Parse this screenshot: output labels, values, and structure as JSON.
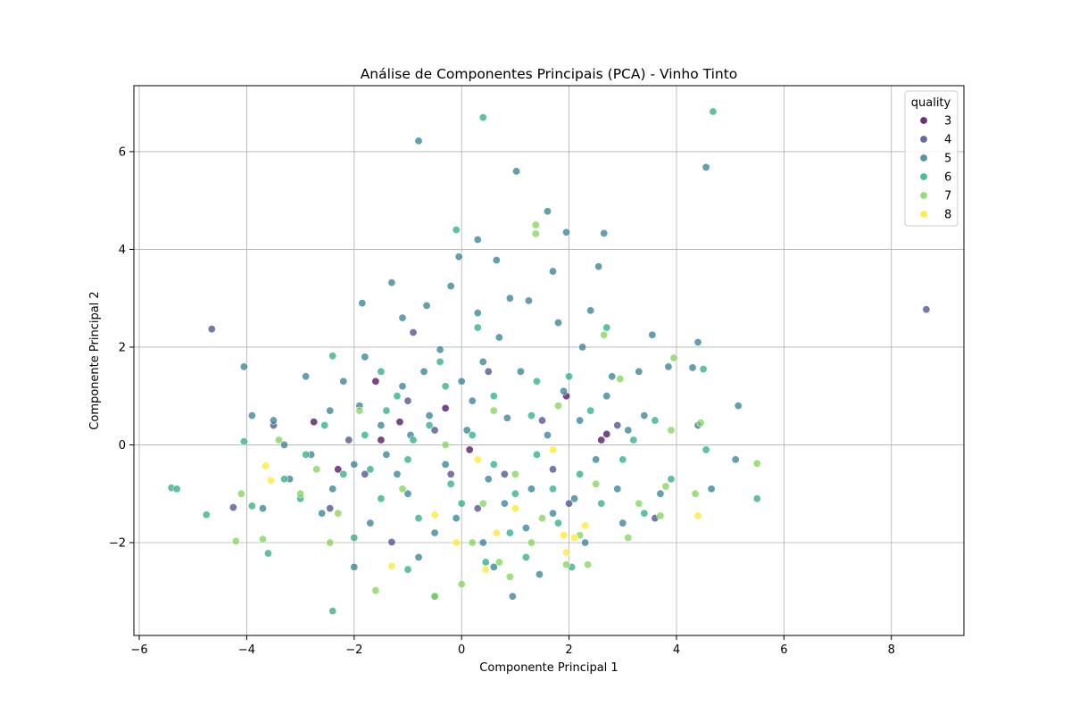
{
  "chart_data": {
    "type": "scatter",
    "title": "Análise de Componentes Principais (PCA) - Vinho Tinto",
    "xlabel": "Componente Principal 1",
    "ylabel": "Componente Principal 2",
    "xlim": [
      -6.1,
      9.35
    ],
    "ylim": [
      -3.9,
      7.35
    ],
    "xticks": [
      -6,
      -4,
      -2,
      0,
      2,
      4,
      6,
      8
    ],
    "yticks": [
      -2,
      0,
      2,
      4,
      6
    ],
    "grid": true,
    "legend": {
      "title": "quality",
      "placement": "upper-right",
      "entries": [
        "3",
        "4",
        "5",
        "6",
        "7",
        "8"
      ]
    },
    "colors": {
      "3": "#440154",
      "4": "#414487",
      "5": "#2a788e",
      "6": "#22a884",
      "7": "#7ad151",
      "8": "#fde725"
    },
    "series": [
      {
        "name": "3",
        "points": [
          [
            -2.75,
            0.47
          ],
          [
            -1.6,
            1.3
          ],
          [
            -1.15,
            0.47
          ],
          [
            -1.5,
            0.1
          ],
          [
            0.15,
            -0.1
          ],
          [
            2.7,
            0.22
          ],
          [
            2.6,
            0.1
          ],
          [
            -0.3,
            0.75
          ],
          [
            1.95,
            1.0
          ],
          [
            -2.3,
            -0.5
          ]
        ]
      },
      {
        "name": "4",
        "points": [
          [
            8.65,
            2.77
          ],
          [
            -4.65,
            2.37
          ],
          [
            -3.5,
            0.4
          ],
          [
            -2.45,
            -1.3
          ],
          [
            -4.25,
            -1.28
          ],
          [
            -1.3,
            -1.99
          ],
          [
            1.7,
            -0.5
          ],
          [
            2.9,
            0.4
          ],
          [
            0.5,
            1.5
          ],
          [
            -0.5,
            0.3
          ],
          [
            0.8,
            -0.6
          ],
          [
            -1.8,
            -0.6
          ],
          [
            1.5,
            0.5
          ],
          [
            -0.9,
            2.3
          ],
          [
            3.6,
            -1.5
          ],
          [
            -2.1,
            0.1
          ],
          [
            0.3,
            -1.3
          ],
          [
            2.0,
            -1.2
          ],
          [
            -1.0,
            0.9
          ],
          [
            -0.2,
            -0.6
          ]
        ]
      },
      {
        "name": "5",
        "points": [
          [
            -0.8,
            6.22
          ],
          [
            4.55,
            5.68
          ],
          [
            1.02,
            5.6
          ],
          [
            1.6,
            4.78
          ],
          [
            1.95,
            4.35
          ],
          [
            2.65,
            4.33
          ],
          [
            -0.05,
            3.85
          ],
          [
            0.3,
            4.2
          ],
          [
            0.65,
            3.78
          ],
          [
            1.7,
            3.55
          ],
          [
            2.55,
            3.65
          ],
          [
            -1.3,
            3.32
          ],
          [
            -0.2,
            3.25
          ],
          [
            0.9,
            3.0
          ],
          [
            1.25,
            2.95
          ],
          [
            2.4,
            2.75
          ],
          [
            -0.65,
            2.85
          ],
          [
            3.55,
            2.25
          ],
          [
            4.4,
            2.1
          ],
          [
            -1.85,
            2.9
          ],
          [
            -1.1,
            2.6
          ],
          [
            0.3,
            2.7
          ],
          [
            1.8,
            2.5
          ],
          [
            2.25,
            2.0
          ],
          [
            3.85,
            1.6
          ],
          [
            4.3,
            1.58
          ],
          [
            -4.05,
            1.6
          ],
          [
            -1.8,
            1.8
          ],
          [
            -0.4,
            1.95
          ],
          [
            0.7,
            2.2
          ],
          [
            1.9,
            1.1
          ],
          [
            2.8,
            1.4
          ],
          [
            3.3,
            1.5
          ],
          [
            -3.9,
            0.6
          ],
          [
            -2.45,
            0.7
          ],
          [
            -1.5,
            0.4
          ],
          [
            -0.95,
            0.2
          ],
          [
            0.1,
            0.3
          ],
          [
            0.85,
            0.55
          ],
          [
            2.2,
            0.5
          ],
          [
            3.1,
            0.3
          ],
          [
            4.4,
            0.4
          ],
          [
            5.15,
            0.8
          ],
          [
            -3.3,
            0.0
          ],
          [
            -2.8,
            -0.2
          ],
          [
            -2.0,
            -0.4
          ],
          [
            -1.2,
            -0.6
          ],
          [
            -0.3,
            -0.4
          ],
          [
            0.5,
            -0.7
          ],
          [
            1.3,
            -0.9
          ],
          [
            2.1,
            -1.1
          ],
          [
            2.9,
            -0.9
          ],
          [
            3.7,
            -1.0
          ],
          [
            4.65,
            -0.9
          ],
          [
            5.1,
            -0.3
          ],
          [
            -3.7,
            -1.3
          ],
          [
            -2.6,
            -1.4
          ],
          [
            -1.7,
            -1.6
          ],
          [
            -0.5,
            -1.8
          ],
          [
            0.4,
            -2.0
          ],
          [
            1.2,
            -1.7
          ],
          [
            2.3,
            -2.0
          ],
          [
            3.0,
            -1.6
          ],
          [
            -2.0,
            -2.5
          ],
          [
            -0.8,
            -2.3
          ],
          [
            0.6,
            -2.5
          ],
          [
            1.45,
            -2.65
          ],
          [
            0.95,
            -3.1
          ],
          [
            -1.1,
            1.2
          ],
          [
            -0.7,
            1.5
          ],
          [
            0.0,
            1.3
          ],
          [
            0.4,
            1.7
          ],
          [
            1.1,
            1.5
          ],
          [
            -2.2,
            1.3
          ],
          [
            -2.9,
            1.4
          ],
          [
            -3.5,
            0.5
          ],
          [
            -3.2,
            -0.7
          ],
          [
            -1.4,
            -0.2
          ],
          [
            -0.6,
            0.6
          ],
          [
            0.2,
            0.9
          ],
          [
            1.6,
            0.2
          ],
          [
            2.5,
            -0.3
          ],
          [
            3.4,
            0.6
          ],
          [
            -1.9,
            0.8
          ],
          [
            -1.0,
            -1.0
          ],
          [
            0.8,
            -1.2
          ],
          [
            1.7,
            -1.4
          ],
          [
            -2.4,
            -0.9
          ],
          [
            -0.1,
            -1.5
          ],
          [
            2.7,
            1.0
          ]
        ]
      },
      {
        "name": "6",
        "points": [
          [
            4.68,
            6.82
          ],
          [
            0.4,
            6.7
          ],
          [
            -0.1,
            4.4
          ],
          [
            -2.4,
            1.82
          ],
          [
            -1.5,
            1.5
          ],
          [
            -0.3,
            1.2
          ],
          [
            0.6,
            1.0
          ],
          [
            1.4,
            1.3
          ],
          [
            2.7,
            2.4
          ],
          [
            4.5,
            1.55
          ],
          [
            -5.4,
            -0.88
          ],
          [
            -5.3,
            -0.9
          ],
          [
            -4.75,
            -1.43
          ],
          [
            -4.05,
            0.07
          ],
          [
            -3.9,
            -1.25
          ],
          [
            -3.6,
            -2.22
          ],
          [
            -3.3,
            -0.7
          ],
          [
            -2.9,
            -0.2
          ],
          [
            -2.55,
            0.4
          ],
          [
            -2.2,
            -0.6
          ],
          [
            -1.8,
            0.2
          ],
          [
            -1.4,
            0.7
          ],
          [
            -1.0,
            -0.3
          ],
          [
            -0.6,
            0.4
          ],
          [
            -0.2,
            -0.8
          ],
          [
            0.2,
            0.2
          ],
          [
            0.6,
            -0.4
          ],
          [
            1.0,
            -1.0
          ],
          [
            1.4,
            -0.2
          ],
          [
            1.8,
            -1.6
          ],
          [
            2.2,
            -0.6
          ],
          [
            2.6,
            -1.2
          ],
          [
            3.0,
            -0.3
          ],
          [
            3.4,
            -1.4
          ],
          [
            3.9,
            -0.7
          ],
          [
            4.55,
            -0.1
          ],
          [
            5.5,
            -1.1
          ],
          [
            -2.4,
            -3.4
          ],
          [
            -1.0,
            -2.55
          ],
          [
            -0.5,
            -3.1
          ],
          [
            0.45,
            -2.4
          ],
          [
            1.2,
            -2.3
          ],
          [
            2.05,
            -2.5
          ],
          [
            -1.5,
            -1.1
          ],
          [
            -0.8,
            -1.5
          ],
          [
            0.0,
            -1.2
          ],
          [
            0.9,
            -1.8
          ],
          [
            1.7,
            -0.9
          ],
          [
            2.4,
            0.7
          ],
          [
            3.2,
            0.1
          ],
          [
            -3.0,
            -1.1
          ],
          [
            -2.0,
            -1.9
          ],
          [
            -1.2,
            1.0
          ],
          [
            -0.4,
            1.7
          ],
          [
            0.3,
            2.4
          ],
          [
            1.3,
            0.6
          ],
          [
            2.0,
            1.4
          ],
          [
            3.6,
            0.5
          ],
          [
            -1.7,
            -0.5
          ],
          [
            -0.9,
            0.1
          ]
        ]
      },
      {
        "name": "7",
        "points": [
          [
            1.38,
            4.5
          ],
          [
            1.38,
            4.32
          ],
          [
            2.65,
            2.25
          ],
          [
            3.95,
            1.78
          ],
          [
            4.45,
            0.45
          ],
          [
            4.35,
            -1.0
          ],
          [
            5.5,
            -0.38
          ],
          [
            -4.1,
            -1.0
          ],
          [
            -4.2,
            -1.97
          ],
          [
            -3.7,
            -1.93
          ],
          [
            -3.0,
            -1.0
          ],
          [
            -2.45,
            -2.0
          ],
          [
            -1.6,
            -2.98
          ],
          [
            -0.5,
            -3.1
          ],
          [
            0.0,
            -2.85
          ],
          [
            0.7,
            -2.4
          ],
          [
            1.3,
            -2.0
          ],
          [
            1.95,
            -2.45
          ],
          [
            2.2,
            -1.85
          ],
          [
            2.35,
            -2.45
          ],
          [
            3.1,
            -1.9
          ],
          [
            3.7,
            -1.45
          ],
          [
            3.8,
            -0.85
          ],
          [
            3.9,
            0.3
          ],
          [
            2.95,
            1.35
          ],
          [
            -1.9,
            0.7
          ],
          [
            -0.3,
            0.0
          ],
          [
            0.4,
            -1.2
          ],
          [
            1.0,
            -0.6
          ],
          [
            1.8,
            0.8
          ],
          [
            -2.3,
            -1.4
          ],
          [
            -1.1,
            -0.9
          ],
          [
            0.2,
            -2.0
          ],
          [
            0.9,
            -2.7
          ],
          [
            2.5,
            -0.8
          ],
          [
            3.3,
            -1.2
          ],
          [
            -3.4,
            0.1
          ],
          [
            -2.7,
            -0.5
          ],
          [
            1.5,
            -1.5
          ],
          [
            0.6,
            0.7
          ]
        ]
      },
      {
        "name": "8",
        "points": [
          [
            -3.65,
            -0.43
          ],
          [
            -3.55,
            -0.73
          ],
          [
            -1.3,
            -2.48
          ],
          [
            -0.5,
            -1.43
          ],
          [
            0.45,
            -2.55
          ],
          [
            0.65,
            -1.8
          ],
          [
            1.9,
            -1.85
          ],
          [
            1.95,
            -2.2
          ],
          [
            2.1,
            -1.9
          ],
          [
            2.3,
            -1.65
          ],
          [
            4.4,
            -1.45
          ],
          [
            1.7,
            -0.1
          ],
          [
            0.3,
            -0.3
          ],
          [
            -0.1,
            -2.0
          ],
          [
            1.0,
            -1.3
          ]
        ]
      }
    ]
  }
}
